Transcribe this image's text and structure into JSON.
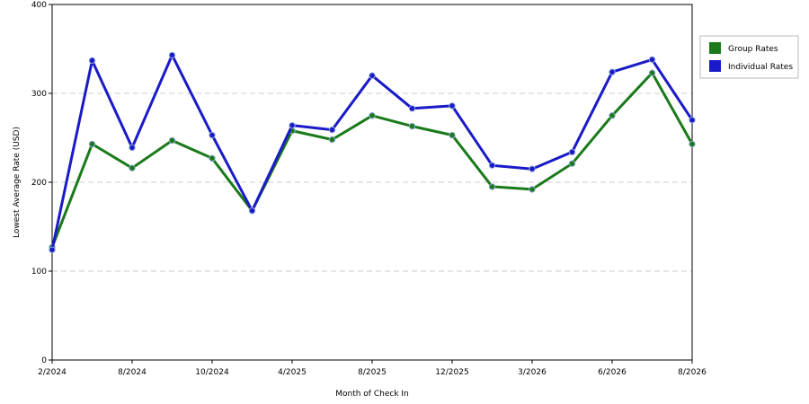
{
  "chart_data": {
    "type": "line",
    "title": "",
    "xlabel": "Month of Check In",
    "ylabel": "Lowest Average Rate (USD)",
    "ylim": [
      0,
      400
    ],
    "yticks": [
      0,
      100,
      200,
      300,
      400
    ],
    "xtick_labels": [
      "2/2024",
      "8/2024",
      "10/2024",
      "4/2025",
      "8/2025",
      "12/2025",
      "3/2026",
      "6/2026",
      "8/2026"
    ],
    "grid": "horizontal dashed",
    "legend_position": "top-right outside",
    "series": [
      {
        "name": "Group Rates",
        "color": "#1a7a1a",
        "values": [
          127,
          243,
          216,
          247,
          227,
          168,
          258,
          248,
          275,
          263,
          253,
          195,
          192,
          221,
          275,
          323,
          243
        ]
      },
      {
        "name": "Individual Rates",
        "color": "#1a1ac8",
        "values": [
          124,
          337,
          239,
          343,
          253,
          168,
          264,
          259,
          320,
          283,
          286,
          219,
          215,
          234,
          324,
          338,
          270
        ]
      }
    ]
  }
}
